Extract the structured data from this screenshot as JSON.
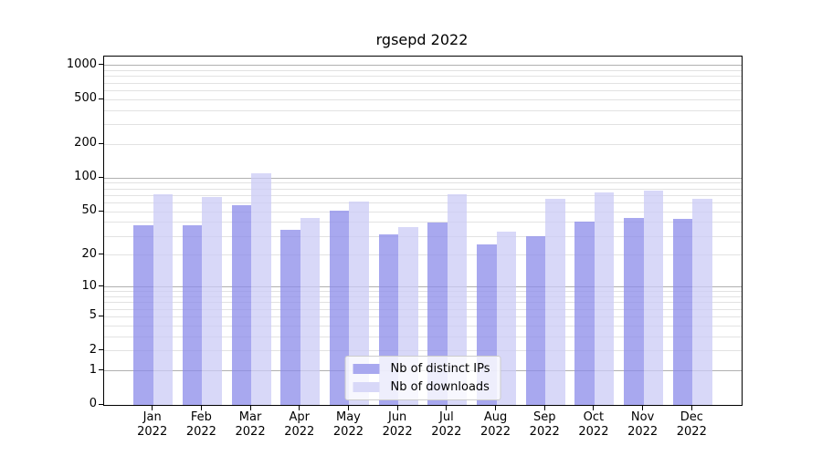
{
  "chart_data": {
    "type": "bar",
    "title": "rgsepd 2022",
    "categories": [
      "Jan 2022",
      "Feb 2022",
      "Mar 2022",
      "Apr 2022",
      "May 2022",
      "Jun 2022",
      "Jul 2022",
      "Aug 2022",
      "Sep 2022",
      "Oct 2022",
      "Nov 2022",
      "Dec 2022"
    ],
    "series": [
      {
        "name": "Nb of distinct IPs",
        "color": "#a8a8ef",
        "values": [
          38,
          38,
          57,
          34,
          51,
          31,
          40,
          25,
          30,
          41,
          44,
          43
        ]
      },
      {
        "name": "Nb of downloads",
        "color": "#d8d8f8",
        "values": [
          72,
          68,
          110,
          44,
          62,
          36,
          72,
          33,
          66,
          75,
          77,
          66
        ]
      }
    ],
    "bar_alpha": 0.75,
    "xlabel": "",
    "ylabel": "",
    "yscale": "log1p",
    "y_ticks": [
      0,
      1,
      2,
      5,
      10,
      20,
      50,
      100,
      200,
      500,
      1000
    ],
    "ylim": [
      0,
      1200
    ],
    "grid": {
      "major_values": [
        1,
        10,
        100,
        1000
      ],
      "major_color": "#b0b0b0",
      "minor_color": "#e2e2e2"
    },
    "legend": {
      "position": "lower center",
      "border_color": "#cccccc"
    }
  }
}
